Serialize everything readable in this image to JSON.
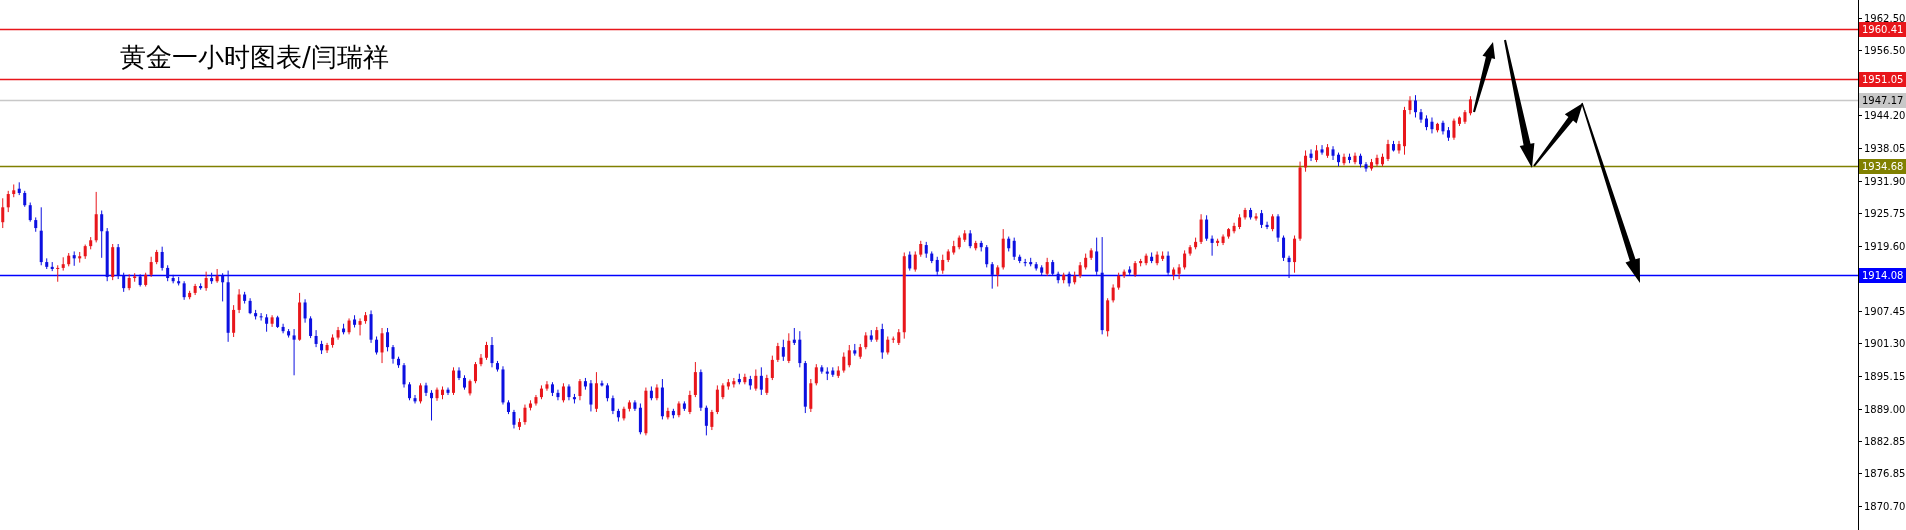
{
  "chart_data": {
    "type": "candlestick",
    "title": "黄金一小时图表/闫瑞祥",
    "colors": [
      "#e8161b",
      "#e8161b",
      "#e8161b",
      "#0c10e0",
      "#0c10e0",
      "#0c10e0",
      "#0c10e0",
      "#0c10e0",
      "#0c10e0",
      "#0c10e0",
      "#e8161b",
      "#e8161b",
      "#e8161b",
      "#0c10e0",
      "#e8161b",
      "#e8161b",
      "#e8161b",
      "#e8161b",
      "#0c10e0",
      "#0c10e0",
      "#e8161b",
      "#0c10e0",
      "#0c10e0",
      "#e8161b",
      "#e8161b",
      "#0c10e0",
      "#e8161b",
      "#e8161b",
      "#e8161b",
      "#0c10e0",
      "#0c10e0",
      "#0c10e0",
      "#0c10e0",
      "#0c10e0",
      "#e8161b",
      "#e8161b",
      "#0c10e0",
      "#e8161b",
      "#0c10e0",
      "#e8161b",
      "#0c10e0",
      "#0c10e0",
      "#e8161b",
      "#e8161b",
      "#0c10e0",
      "#0c10e0",
      "#0c10e0",
      "#0c10e0",
      "#0c10e0",
      "#e8161b",
      "#0c10e0",
      "#0c10e0",
      "#0c10e0",
      "#0c10e0",
      "#e8161b",
      "#0c10e0",
      "#0c10e0",
      "#0c10e0",
      "#0c10e0",
      "#e8161b",
      "#e8161b",
      "#e8161b",
      "#0c10e0",
      "#e8161b",
      "#0c10e0",
      "#e8161b",
      "#e8161b",
      "#0c10e0",
      "#0c10e0",
      "#e8161b",
      "#0c10e0",
      "#0c10e0",
      "#0c10e0",
      "#0c10e0",
      "#0c10e0",
      "#0c10e0",
      "#e8161b",
      "#0c10e0",
      "#0c10e0",
      "#e8161b",
      "#e8161b",
      "#0c10e0",
      "#e8161b",
      "#0c10e0",
      "#0c10e0",
      "#e8161b",
      "#e8161b",
      "#e8161b",
      "#e8161b",
      "#0c10e0",
      "#0c10e0",
      "#0c10e0",
      "#0c10e0",
      "#0c10e0",
      "#e8161b",
      "#e8161b",
      "#e8161b",
      "#e8161b",
      "#e8161b",
      "#e8161b",
      "#0c10e0",
      "#0c10e0",
      "#e8161b",
      "#0c10e0",
      "#0c10e0",
      "#e8161b",
      "#0c10e0",
      "#0c10e0",
      "#e8161b",
      "#0c10e0",
      "#0c10e0",
      "#0c10e0",
      "#0c10e0",
      "#e8161b",
      "#e8161b",
      "#0c10e0",
      "#0c10e0",
      "#e8161b",
      "#0c10e0",
      "#e8161b",
      "#0c10e0",
      "#e8161b",
      "#0c10e0",
      "#e8161b",
      "#0c10e0",
      "#e8161b",
      "#e8161b",
      "#0c10e0",
      "#0c10e0",
      "#e8161b",
      "#e8161b",
      "#e8161b",
      "#e8161b",
      "#e8161b",
      "#0c10e0",
      "#e8161b",
      "#0c10e0",
      "#e8161b",
      "#0c10e0",
      "#e8161b",
      "#e8161b",
      "#e8161b",
      "#0c10e0",
      "#e8161b",
      "#0c10e0",
      "#0c10e0",
      "#0c10e0",
      "#e8161b",
      "#e8161b",
      "#0c10e0",
      "#0c10e0",
      "#0c10e0",
      "#e8161b",
      "#e8161b",
      "#e8161b",
      "#0c10e0",
      "#e8161b",
      "#e8161b",
      "#0c10e0",
      "#e8161b",
      "#0c10e0",
      "#e8161b",
      "#e8161b",
      "#e8161b",
      "#e8161b",
      "#0c10e0",
      "#e8161b",
      "#e8161b",
      "#0c10e0",
      "#0c10e0",
      "#0c10e0",
      "#e8161b",
      "#e8161b",
      "#e8161b",
      "#e8161b",
      "#e8161b",
      "#0c10e0",
      "#e8161b",
      "#0c10e0",
      "#0c10e0",
      "#0c10e0",
      "#e8161b",
      "#e8161b",
      "#0c10e0",
      "#0c10e0",
      "#0c10e0",
      "#0c10e0",
      "#0c10e0",
      "#0c10e0",
      "#0c10e0",
      "#e8161b",
      "#0c10e0",
      "#0c10e0",
      "#e8161b",
      "#0c10e0",
      "#e8161b",
      "#e8161b",
      "#e8161b",
      "#e8161b",
      "#0c10e0",
      "#0c10e0",
      "#e8161b",
      "#e8161b",
      "#e8161b",
      "#e8161b",
      "#0c10e0",
      "#e8161b",
      "#e8161b",
      "#e8161b",
      "#0c10e0",
      "#e8161b",
      "#e8161b",
      "#0c10e0",
      "#e8161b",
      "#e8161b",
      "#e8161b",
      "#e8161b",
      "#e8161b",
      "#e8161b",
      "#0c10e0",
      "#0c10e0",
      "#e8161b",
      "#e8161b",
      "#e8161b",
      "#e8161b",
      "#e8161b",
      "#e8161b",
      "#0c10e0",
      "#e8161b",
      "#0c10e0",
      "#0c10e0",
      "#e8161b",
      "#0c10e0",
      "#0c10e0",
      "#0c10e0",
      "#e8161b",
      "#e8161b",
      "#e8161b",
      "#0c10e0",
      "#e8161b",
      "#0c10e0",
      "#e8161b",
      "#0c10e0",
      "#0c10e0",
      "#e8161b",
      "#0c10e0",
      "#e8161b",
      "#0c10e0",
      "#0c10e0",
      "#e8161b",
      "#e8161b",
      "#e8161b",
      "#e8161b",
      "#0c10e0",
      "#e8161b",
      "#e8161b",
      "#e8161b",
      "#0c10e0",
      "#0c10e0",
      "#0c10e0",
      "#0c10e0",
      "#e8161b",
      "#0c10e0",
      "#0c10e0",
      "#e8161b",
      "#e8161b",
      "#e8161b",
      "#e8161b",
      null,
      null,
      null,
      null,
      null,
      null,
      null,
      null,
      null,
      null,
      null,
      null,
      null,
      null,
      null,
      null,
      null,
      null,
      null,
      null,
      null,
      null,
      null,
      null,
      null,
      null,
      null,
      null,
      null,
      null,
      null,
      null,
      null,
      null,
      null,
      null,
      null,
      null,
      null,
      null,
      null,
      null,
      null,
      null,
      null,
      null,
      null,
      null,
      null,
      null,
      null,
      null,
      null,
      null,
      null,
      null,
      null,
      null,
      null,
      null,
      null,
      null,
      null,
      null,
      null,
      null,
      null,
      null,
      null,
      null
    ],
    "ylim": [
      1866.2,
      1965.9
    ],
    "yticks": [
      {
        "value": 1962.5,
        "label": "1962.50"
      },
      {
        "value": 1956.5,
        "label": "1956.50"
      },
      {
        "value": 1950.35,
        "label": null
      },
      {
        "value": 1944.2,
        "label": "1944.20"
      },
      {
        "value": 1938.05,
        "label": "1938.05"
      },
      {
        "value": 1931.9,
        "label": "1931.90"
      },
      {
        "value": 1925.75,
        "label": "1925.75"
      },
      {
        "value": 1919.6,
        "label": "1919.60"
      },
      {
        "value": 1913.5,
        "label": null
      },
      {
        "value": 1907.45,
        "label": "1907.45"
      },
      {
        "value": 1901.3,
        "label": "1901.30"
      },
      {
        "value": 1895.15,
        "label": "1895.15"
      },
      {
        "value": 1889.0,
        "label": "1889.00"
      },
      {
        "value": 1882.85,
        "label": "1882.85"
      },
      {
        "value": 1876.85,
        "label": "1876.85"
      },
      {
        "value": 1870.7,
        "label": "1870.70"
      }
    ],
    "tick_labels": "y",
    "ref_lines": [
      {
        "axis": "y",
        "value": 1960.41,
        "label": "1960.41",
        "color": "#e8161b"
      },
      {
        "axis": "y",
        "value": 1951.05,
        "label": "1951.05",
        "color": "#e8161b"
      },
      {
        "axis": "y",
        "value": 1947.17,
        "label": "1947.17",
        "color": "#c8c8c8"
      },
      {
        "axis": "y",
        "value": 1934.68,
        "label": "1934.68",
        "color": "#808000"
      },
      {
        "axis": "y",
        "value": 1914.08,
        "label": "1914.08",
        "color": "#0000ff"
      }
    ],
    "categories": [
      null,
      null,
      null,
      null,
      null,
      null,
      null,
      null,
      null,
      null,
      null,
      null,
      null,
      null,
      null,
      null,
      null,
      null,
      null,
      null,
      null,
      null,
      null,
      null,
      null,
      null,
      null,
      null,
      null,
      null,
      null,
      null,
      null,
      null,
      null,
      null,
      null,
      null,
      null,
      null,
      null,
      null,
      null,
      null,
      null,
      null,
      null,
      null,
      null,
      null,
      null,
      null,
      null,
      null,
      null,
      null,
      null,
      null,
      null,
      null,
      null,
      null,
      null,
      null,
      null,
      null,
      null,
      null,
      null,
      null,
      null,
      null,
      null,
      null,
      null,
      null,
      null,
      null,
      null,
      null,
      null,
      null,
      null,
      null,
      null,
      null,
      null,
      null,
      null,
      null,
      null,
      null,
      null,
      null,
      null,
      null,
      null,
      null,
      null,
      null,
      null,
      null,
      null,
      null,
      null,
      null,
      null,
      null,
      null,
      null,
      null,
      null,
      null,
      null,
      null,
      null,
      null,
      null,
      null,
      null,
      null,
      null,
      null,
      null,
      null,
      null,
      null,
      null,
      null,
      null,
      null,
      null,
      null,
      null,
      null,
      null,
      null,
      null,
      null,
      null,
      null,
      null,
      null,
      null,
      null,
      null,
      null,
      null,
      null,
      null,
      null,
      null,
      null,
      null,
      null,
      null,
      null,
      null,
      null,
      null,
      null,
      null,
      null,
      null,
      null,
      null,
      null,
      null,
      null,
      null,
      null,
      null,
      null,
      null,
      null,
      null,
      null,
      null,
      null,
      null,
      null,
      null,
      null,
      null,
      null,
      null,
      null,
      null,
      null,
      null,
      null,
      null,
      null,
      null,
      null,
      null,
      null,
      null,
      null,
      null,
      null,
      null,
      null,
      null,
      null,
      null,
      null,
      null,
      null,
      null,
      null,
      null,
      null,
      null,
      null,
      null,
      null,
      null,
      null,
      null,
      null,
      null,
      null,
      null,
      null,
      null,
      null,
      null,
      null,
      null,
      null,
      null,
      null,
      null,
      null,
      null,
      null,
      null,
      null,
      null,
      null,
      null,
      null,
      null,
      null,
      null,
      null,
      null,
      null,
      null,
      null,
      null,
      null,
      null,
      null,
      null,
      null,
      null,
      null,
      null,
      null,
      null,
      null,
      null,
      null,
      null,
      null,
      null,
      null,
      null,
      null,
      null,
      null,
      null,
      null,
      null,
      null,
      null,
      null,
      null,
      null,
      null,
      null,
      null,
      null,
      null,
      null,
      null,
      null,
      null,
      null,
      null,
      null,
      null,
      null,
      null,
      null,
      null,
      null,
      null,
      null,
      null,
      null,
      null,
      null,
      null,
      null,
      null,
      null,
      null,
      null,
      null,
      null,
      null,
      null,
      null,
      null,
      null,
      null,
      null,
      null,
      null,
      null,
      null,
      null,
      null,
      null,
      null,
      null,
      null,
      null,
      null,
      null,
      null,
      null,
      null,
      null,
      null
    ],
    "ohlc": [
      [
        1924.1,
        1928.6,
        1923.0,
        1926.9
      ],
      [
        1926.9,
        1930.0,
        1926.0,
        1929.4
      ],
      [
        1929.4,
        1931.2,
        1928.8,
        1930.1
      ],
      [
        1930.4,
        1931.6,
        1929.2,
        1929.6
      ],
      [
        1929.6,
        1930.0,
        1927.0,
        1927.3
      ],
      [
        1927.3,
        1927.8,
        1924.2,
        1924.5
      ],
      [
        1924.5,
        1925.0,
        1922.3,
        1923.0
      ],
      [
        1922.5,
        1926.9,
        1916.0,
        1916.6
      ],
      [
        1916.6,
        1917.3,
        1915.3,
        1915.7
      ],
      [
        1915.7,
        1916.6,
        1914.9,
        1915.3
      ],
      [
        1915.3,
        1916.0,
        1912.9,
        1915.5
      ],
      [
        1915.5,
        1917.5,
        1915.0,
        1916.2
      ],
      [
        1916.2,
        1918.3,
        1915.8,
        1917.8
      ],
      [
        1917.9,
        1918.6,
        1915.9,
        1917.3
      ],
      [
        1917.3,
        1918.5,
        1916.5,
        1917.7
      ],
      [
        1917.7,
        1919.9,
        1917.2,
        1919.6
      ],
      [
        1919.6,
        1921.3,
        1919.0,
        1920.7
      ],
      [
        1920.7,
        1929.8,
        1920.3,
        1925.6
      ],
      [
        1925.6,
        1926.3,
        1917.4,
        1922.4
      ],
      [
        1922.4,
        1923.0,
        1913.0,
        1913.8
      ],
      [
        1913.8,
        1920.0,
        1913.2,
        1919.4
      ],
      [
        1919.4,
        1920.0,
        1913.4,
        1914.0
      ],
      [
        1914.0,
        1914.6,
        1911.0,
        1911.7
      ],
      [
        1911.7,
        1914.3,
        1911.3,
        1913.6
      ],
      [
        1913.6,
        1914.5,
        1912.9,
        1913.9
      ],
      [
        1913.9,
        1914.3,
        1912.0,
        1912.3
      ],
      [
        1912.3,
        1914.6,
        1912.0,
        1914.2
      ],
      [
        1914.2,
        1917.6,
        1913.8,
        1916.6
      ],
      [
        1916.6,
        1918.9,
        1916.2,
        1918.5
      ],
      [
        1918.5,
        1919.5,
        1915.0,
        1915.5
      ],
      [
        1915.5,
        1916.0,
        1913.0,
        1913.6
      ],
      [
        1913.6,
        1914.2,
        1912.6,
        1913.0
      ],
      [
        1913.0,
        1913.8,
        1912.2,
        1912.6
      ],
      [
        1912.6,
        1913.0,
        1909.5,
        1910.0
      ],
      [
        1910.0,
        1911.2,
        1909.6,
        1910.8
      ],
      [
        1910.8,
        1912.5,
        1910.4,
        1912.1
      ],
      [
        1912.1,
        1912.6,
        1911.4,
        1911.7
      ],
      [
        1911.7,
        1914.8,
        1911.2,
        1913.6
      ],
      [
        1913.6,
        1914.6,
        1912.5,
        1913.0
      ],
      [
        1913.0,
        1915.3,
        1912.7,
        1914.0
      ],
      [
        1914.0,
        1914.5,
        1909.2,
        1912.8
      ],
      [
        1912.8,
        1915.0,
        1901.6,
        1903.3
      ],
      [
        1903.3,
        1908.5,
        1902.5,
        1907.6
      ],
      [
        1907.6,
        1911.5,
        1907.0,
        1910.5
      ],
      [
        1910.5,
        1911.0,
        1908.8,
        1909.3
      ],
      [
        1909.3,
        1909.8,
        1906.8,
        1907.0
      ],
      [
        1907.0,
        1907.6,
        1905.8,
        1906.4
      ],
      [
        1906.4,
        1907.0,
        1905.6,
        1906.2
      ],
      [
        1906.2,
        1906.8,
        1903.5,
        1905.0
      ],
      [
        1905.0,
        1906.6,
        1904.4,
        1906.2
      ],
      [
        1906.2,
        1906.5,
        1904.2,
        1904.4
      ],
      [
        1904.4,
        1905.0,
        1903.2,
        1903.6
      ],
      [
        1903.6,
        1904.0,
        1902.4,
        1902.8
      ],
      [
        1902.8,
        1904.0,
        1895.3,
        1902.0
      ],
      [
        1902.0,
        1910.8,
        1901.8,
        1909.0
      ],
      [
        1909.0,
        1909.6,
        1905.2,
        1906.0
      ],
      [
        1906.0,
        1906.4,
        1902.3,
        1902.7
      ],
      [
        1902.7,
        1903.8,
        1900.6,
        1901.2
      ],
      [
        1901.2,
        1901.8,
        1899.3,
        1900.0
      ],
      [
        1900.0,
        1901.4,
        1899.5,
        1901.0
      ],
      [
        1901.0,
        1903.0,
        1900.5,
        1902.4
      ],
      [
        1902.4,
        1904.4,
        1902.0,
        1903.8
      ],
      [
        1904.1,
        1905.0,
        1903.0,
        1903.4
      ],
      [
        1903.4,
        1906.0,
        1903.0,
        1905.6
      ],
      [
        1905.8,
        1906.6,
        1904.3,
        1904.8
      ],
      [
        1904.8,
        1906.0,
        1902.8,
        1905.5
      ],
      [
        1905.5,
        1907.2,
        1905.0,
        1906.6
      ],
      [
        1906.8,
        1907.5,
        1901.4,
        1902.0
      ],
      [
        1902.0,
        1902.6,
        1899.2,
        1899.6
      ],
      [
        1899.6,
        1904.2,
        1897.6,
        1903.2
      ],
      [
        1903.4,
        1904.2,
        1899.8,
        1900.6
      ],
      [
        1900.6,
        1901.0,
        1897.5,
        1898.4
      ],
      [
        1898.4,
        1898.8,
        1896.7,
        1897.2
      ],
      [
        1897.2,
        1897.6,
        1893.0,
        1893.6
      ],
      [
        1893.6,
        1894.0,
        1890.6,
        1891.0
      ],
      [
        1891.0,
        1891.6,
        1890.0,
        1890.4
      ],
      [
        1890.4,
        1893.8,
        1890.0,
        1893.4
      ],
      [
        1893.4,
        1893.9,
        1891.4,
        1892.0
      ],
      [
        1892.0,
        1892.5,
        1886.8,
        1891.0
      ],
      [
        1891.0,
        1893.0,
        1890.5,
        1892.6
      ],
      [
        1891.6,
        1893.2,
        1890.8,
        1892.6
      ],
      [
        1892.6,
        1893.0,
        1891.6,
        1892.0
      ],
      [
        1892.0,
        1896.8,
        1891.6,
        1896.2
      ],
      [
        1896.2,
        1896.8,
        1894.4,
        1894.8
      ],
      [
        1894.8,
        1895.3,
        1892.6,
        1893.0
      ],
      [
        1891.9,
        1894.5,
        1891.5,
        1894.2
      ],
      [
        1894.2,
        1897.8,
        1893.8,
        1897.4
      ],
      [
        1897.4,
        1899.3,
        1897.0,
        1898.6
      ],
      [
        1898.6,
        1901.6,
        1898.2,
        1901.0
      ],
      [
        1901.0,
        1902.5,
        1896.8,
        1897.6
      ],
      [
        1897.6,
        1898.0,
        1896.0,
        1896.4
      ],
      [
        1896.4,
        1897.0,
        1889.8,
        1890.2
      ],
      [
        1890.2,
        1890.6,
        1888.0,
        1888.4
      ],
      [
        1888.4,
        1888.8,
        1885.3,
        1886.0
      ],
      [
        1885.6,
        1887.2,
        1885.0,
        1886.5
      ],
      [
        1886.5,
        1889.8,
        1886.0,
        1889.2
      ],
      [
        1889.2,
        1890.6,
        1888.7,
        1890.0
      ],
      [
        1890.0,
        1891.6,
        1889.6,
        1891.2
      ],
      [
        1891.2,
        1893.4,
        1890.8,
        1892.8
      ],
      [
        1892.8,
        1894.2,
        1892.4,
        1893.6
      ],
      [
        1893.6,
        1894.0,
        1891.4,
        1892.0
      ],
      [
        1892.0,
        1892.6,
        1890.6,
        1891.2
      ],
      [
        1890.6,
        1893.8,
        1890.2,
        1893.2
      ],
      [
        1893.2,
        1893.6,
        1890.6,
        1891.2
      ],
      [
        1891.2,
        1891.8,
        1890.0,
        1890.8
      ],
      [
        1891.4,
        1894.6,
        1890.6,
        1894.2
      ],
      [
        1894.2,
        1894.8,
        1892.6,
        1893.2
      ],
      [
        1893.8,
        1894.4,
        1888.5,
        1889.8
      ],
      [
        1889.0,
        1895.9,
        1888.4,
        1893.8
      ],
      [
        1893.8,
        1894.3,
        1893.2,
        1893.4
      ],
      [
        1893.4,
        1893.8,
        1890.4,
        1891.0
      ],
      [
        1891.0,
        1891.5,
        1888.0,
        1888.6
      ],
      [
        1888.6,
        1889.0,
        1886.6,
        1887.4
      ],
      [
        1887.2,
        1889.4,
        1886.8,
        1889.0
      ],
      [
        1889.0,
        1890.6,
        1888.5,
        1890.2
      ],
      [
        1890.2,
        1890.6,
        1888.6,
        1889.0
      ],
      [
        1889.2,
        1890.0,
        1884.2,
        1884.6
      ],
      [
        1884.4,
        1893.0,
        1884.0,
        1892.4
      ],
      [
        1892.4,
        1893.2,
        1890.6,
        1891.0
      ],
      [
        1891.0,
        1893.6,
        1890.6,
        1893.0
      ],
      [
        1893.0,
        1894.6,
        1887.0,
        1887.6
      ],
      [
        1887.4,
        1889.2,
        1887.0,
        1888.6
      ],
      [
        1888.6,
        1889.0,
        1887.2,
        1887.8
      ],
      [
        1887.8,
        1890.4,
        1887.4,
        1890.0
      ],
      [
        1890.0,
        1890.4,
        1888.6,
        1889.0
      ],
      [
        1888.4,
        1892.4,
        1888.0,
        1891.6
      ],
      [
        1891.6,
        1897.8,
        1891.2,
        1895.9
      ],
      [
        1895.9,
        1896.4,
        1888.6,
        1889.2
      ],
      [
        1889.2,
        1889.6,
        1884.0,
        1885.8
      ],
      [
        1885.6,
        1888.8,
        1885.0,
        1888.4
      ],
      [
        1888.4,
        1893.4,
        1888.0,
        1892.6
      ],
      [
        1891.2,
        1893.8,
        1890.8,
        1893.4
      ],
      [
        1893.2,
        1894.6,
        1892.6,
        1894.0
      ],
      [
        1893.6,
        1894.8,
        1893.0,
        1894.2
      ],
      [
        1894.6,
        1895.6,
        1893.6,
        1894.0
      ],
      [
        1894.0,
        1895.6,
        1893.6,
        1895.0
      ],
      [
        1894.6,
        1895.2,
        1892.6,
        1893.4
      ],
      [
        1892.8,
        1896.4,
        1892.4,
        1895.2
      ],
      [
        1895.2,
        1896.8,
        1891.6,
        1892.6
      ],
      [
        1892.0,
        1895.4,
        1891.6,
        1894.8
      ],
      [
        1894.8,
        1899.0,
        1894.4,
        1898.2
      ],
      [
        1898.2,
        1901.4,
        1897.8,
        1900.8
      ],
      [
        1900.6,
        1902.0,
        1898.0,
        1898.8
      ],
      [
        1898.0,
        1903.2,
        1897.6,
        1901.8
      ],
      [
        1902.0,
        1904.2,
        1901.0,
        1901.4
      ],
      [
        1902.0,
        1903.6,
        1896.8,
        1897.6
      ],
      [
        1897.6,
        1898.0,
        1888.2,
        1889.4
      ],
      [
        1889.0,
        1894.6,
        1888.4,
        1893.8
      ],
      [
        1893.8,
        1897.4,
        1893.4,
        1896.8
      ],
      [
        1896.8,
        1897.2,
        1895.6,
        1896.0
      ],
      [
        1896.0,
        1896.8,
        1894.4,
        1895.6
      ],
      [
        1896.2,
        1896.8,
        1895.0,
        1895.4
      ],
      [
        1895.2,
        1897.0,
        1894.8,
        1896.2
      ],
      [
        1896.2,
        1899.6,
        1895.8,
        1898.8
      ],
      [
        1897.2,
        1901.0,
        1896.8,
        1900.0
      ],
      [
        1900.0,
        1901.2,
        1899.0,
        1899.4
      ],
      [
        1898.8,
        1901.2,
        1898.4,
        1900.6
      ],
      [
        1900.6,
        1903.4,
        1900.2,
        1902.8
      ],
      [
        1902.8,
        1903.8,
        1901.6,
        1902.0
      ],
      [
        1902.0,
        1904.4,
        1901.6,
        1903.8
      ],
      [
        1904.0,
        1905.0,
        1898.4,
        1899.6
      ],
      [
        1899.6,
        1902.6,
        1899.2,
        1902.0
      ],
      [
        1902.0,
        1902.6,
        1901.4,
        1902.2
      ],
      [
        1901.4,
        1904.0,
        1901.0,
        1903.4
      ],
      [
        1903.4,
        1918.4,
        1902.2,
        1917.7
      ],
      [
        1918.0,
        1918.6,
        1915.0,
        1915.4
      ],
      [
        1915.2,
        1918.6,
        1914.8,
        1918.0
      ],
      [
        1918.0,
        1920.6,
        1917.6,
        1920.0
      ],
      [
        1919.8,
        1920.4,
        1917.4,
        1918.2
      ],
      [
        1918.2,
        1918.6,
        1916.4,
        1916.8
      ],
      [
        1917.0,
        1917.6,
        1914.2,
        1914.8
      ],
      [
        1915.0,
        1918.0,
        1914.4,
        1917.0
      ],
      [
        1917.0,
        1919.0,
        1916.6,
        1918.6
      ],
      [
        1918.4,
        1920.6,
        1918.0,
        1919.6
      ],
      [
        1919.4,
        1921.6,
        1919.0,
        1921.2
      ],
      [
        1920.8,
        1922.6,
        1920.4,
        1922.0
      ],
      [
        1922.0,
        1922.6,
        1919.2,
        1919.6
      ],
      [
        1919.2,
        1920.6,
        1918.8,
        1920.2
      ],
      [
        1920.2,
        1920.6,
        1918.6,
        1919.4
      ],
      [
        1919.4,
        1919.8,
        1915.6,
        1916.2
      ],
      [
        1916.2,
        1916.6,
        1911.6,
        1914.2
      ],
      [
        1914.2,
        1916.0,
        1912.0,
        1915.6
      ],
      [
        1915.6,
        1922.8,
        1915.2,
        1921.0
      ],
      [
        1921.0,
        1921.4,
        1918.6,
        1919.2
      ],
      [
        1920.6,
        1921.2,
        1917.0,
        1917.6
      ],
      [
        1917.6,
        1918.0,
        1916.4,
        1916.8
      ],
      [
        1916.6,
        1917.2,
        1915.8,
        1916.4
      ],
      [
        1916.6,
        1917.4,
        1915.8,
        1916.2
      ],
      [
        1916.2,
        1916.6,
        1915.0,
        1915.4
      ],
      [
        1915.6,
        1916.0,
        1914.0,
        1914.6
      ],
      [
        1914.4,
        1917.4,
        1914.0,
        1916.6
      ],
      [
        1916.6,
        1917.0,
        1914.0,
        1914.4
      ],
      [
        1914.4,
        1914.8,
        1912.6,
        1913.2
      ],
      [
        1913.2,
        1914.6,
        1912.6,
        1914.2
      ],
      [
        1914.4,
        1914.8,
        1912.0,
        1912.6
      ],
      [
        1912.8,
        1914.8,
        1912.4,
        1914.0
      ],
      [
        1914.0,
        1916.6,
        1913.6,
        1916.0
      ],
      [
        1915.6,
        1918.2,
        1915.2,
        1917.4
      ],
      [
        1917.4,
        1919.2,
        1917.0,
        1918.8
      ],
      [
        1918.6,
        1921.2,
        1914.2,
        1914.8
      ],
      [
        1914.6,
        1921.3,
        1903.0,
        1903.8
      ],
      [
        1903.6,
        1909.8,
        1902.6,
        1909.4
      ],
      [
        1909.4,
        1912.4,
        1909.0,
        1911.8
      ],
      [
        1911.8,
        1914.6,
        1911.4,
        1914.0
      ],
      [
        1914.0,
        1915.2,
        1913.6,
        1914.8
      ],
      [
        1915.2,
        1915.8,
        1914.2,
        1914.6
      ],
      [
        1914.2,
        1916.8,
        1913.8,
        1916.4
      ],
      [
        1916.4,
        1917.2,
        1915.8,
        1916.8
      ],
      [
        1916.4,
        1918.2,
        1916.0,
        1917.8
      ],
      [
        1917.6,
        1918.4,
        1916.4,
        1916.8
      ],
      [
        1916.4,
        1918.6,
        1916.0,
        1918.0
      ],
      [
        1917.2,
        1918.6,
        1916.8,
        1917.8
      ],
      [
        1917.8,
        1918.6,
        1914.2,
        1914.6
      ],
      [
        1914.2,
        1915.6,
        1913.2,
        1915.2
      ],
      [
        1914.4,
        1916.2,
        1913.4,
        1915.6
      ],
      [
        1915.6,
        1918.8,
        1915.2,
        1918.2
      ],
      [
        1918.2,
        1919.8,
        1917.8,
        1919.4
      ],
      [
        1919.4,
        1921.2,
        1919.0,
        1920.4
      ],
      [
        1920.4,
        1925.6,
        1920.0,
        1924.6
      ],
      [
        1924.6,
        1925.4,
        1920.6,
        1921.0
      ],
      [
        1921.0,
        1921.6,
        1917.8,
        1920.2
      ],
      [
        1920.2,
        1921.0,
        1919.6,
        1920.6
      ],
      [
        1920.2,
        1921.8,
        1919.8,
        1921.4
      ],
      [
        1921.4,
        1923.0,
        1921.0,
        1922.8
      ],
      [
        1922.4,
        1924.0,
        1922.0,
        1923.4
      ],
      [
        1923.2,
        1925.6,
        1922.8,
        1925.0
      ],
      [
        1925.0,
        1926.8,
        1924.6,
        1926.4
      ],
      [
        1926.4,
        1926.8,
        1924.6,
        1925.0
      ],
      [
        1924.8,
        1925.8,
        1924.4,
        1925.2
      ],
      [
        1925.8,
        1926.4,
        1923.0,
        1923.6
      ],
      [
        1923.6,
        1924.2,
        1922.8,
        1923.2
      ],
      [
        1922.8,
        1925.6,
        1922.4,
        1925.2
      ],
      [
        1925.2,
        1925.6,
        1920.4,
        1921.2
      ],
      [
        1921.2,
        1921.6,
        1916.8,
        1917.4
      ],
      [
        1917.4,
        1917.8,
        1913.6,
        1916.6
      ],
      [
        1916.6,
        1921.6,
        1914.6,
        1921.0
      ],
      [
        1921.0,
        1935.5,
        1920.6,
        1934.4
      ],
      [
        1934.4,
        1937.6,
        1933.6,
        1936.6
      ],
      [
        1937.0,
        1937.8,
        1935.6,
        1936.2
      ],
      [
        1935.8,
        1938.6,
        1935.4,
        1937.6
      ],
      [
        1937.8,
        1938.6,
        1936.8,
        1937.2
      ],
      [
        1936.6,
        1938.8,
        1936.2,
        1938.2
      ],
      [
        1937.8,
        1938.4,
        1935.8,
        1936.6
      ],
      [
        1936.8,
        1937.2,
        1934.6,
        1935.4
      ],
      [
        1935.2,
        1937.0,
        1934.8,
        1936.4
      ],
      [
        1936.4,
        1937.0,
        1935.2,
        1935.8
      ],
      [
        1935.4,
        1937.2,
        1935.0,
        1936.6
      ],
      [
        1936.6,
        1937.0,
        1934.4,
        1935.0
      ],
      [
        1935.0,
        1935.4,
        1933.6,
        1934.2
      ],
      [
        1934.2,
        1936.0,
        1933.8,
        1935.4
      ],
      [
        1935.0,
        1936.8,
        1934.6,
        1936.2
      ],
      [
        1935.0,
        1937.0,
        1934.6,
        1936.4
      ],
      [
        1936.0,
        1939.6,
        1935.6,
        1938.8
      ],
      [
        1938.8,
        1939.4,
        1937.4,
        1937.6
      ],
      [
        1937.6,
        1939.4,
        1937.0,
        1938.8
      ],
      [
        1938.4,
        1945.8,
        1936.8,
        1945.2
      ],
      [
        1945.2,
        1947.8,
        1944.4,
        1947.0
      ],
      [
        1947.0,
        1948.0,
        1943.8,
        1944.8
      ],
      [
        1944.8,
        1945.4,
        1942.8,
        1943.4
      ],
      [
        1943.6,
        1944.2,
        1941.4,
        1942.0
      ],
      [
        1943.0,
        1943.8,
        1940.8,
        1941.6
      ],
      [
        1941.4,
        1942.8,
        1941.0,
        1942.6
      ],
      [
        1942.8,
        1943.2,
        1940.6,
        1941.2
      ],
      [
        1941.4,
        1942.0,
        1939.4,
        1940.0
      ],
      [
        1940.0,
        1943.6,
        1939.6,
        1943.2
      ],
      [
        1942.6,
        1944.0,
        1942.2,
        1943.8
      ],
      [
        1943.0,
        1945.2,
        1942.6,
        1944.8
      ],
      [
        1944.6,
        1947.8,
        1944.2,
        1947.2
      ],
      null,
      null,
      null,
      null,
      null,
      null,
      null,
      null,
      null,
      null,
      null,
      null,
      null,
      null,
      null,
      null,
      null,
      null,
      null,
      null,
      null,
      null,
      null,
      null,
      null,
      null,
      null,
      null,
      null,
      null,
      null,
      null,
      null,
      null,
      null,
      null,
      null,
      null,
      null,
      null,
      null,
      null,
      null,
      null,
      null,
      null,
      null,
      null,
      null,
      null,
      null,
      null,
      null,
      null,
      null,
      null,
      null,
      null,
      null,
      null,
      null,
      null,
      null,
      null,
      null,
      null,
      null,
      null,
      null,
      null
    ]
  }
}
